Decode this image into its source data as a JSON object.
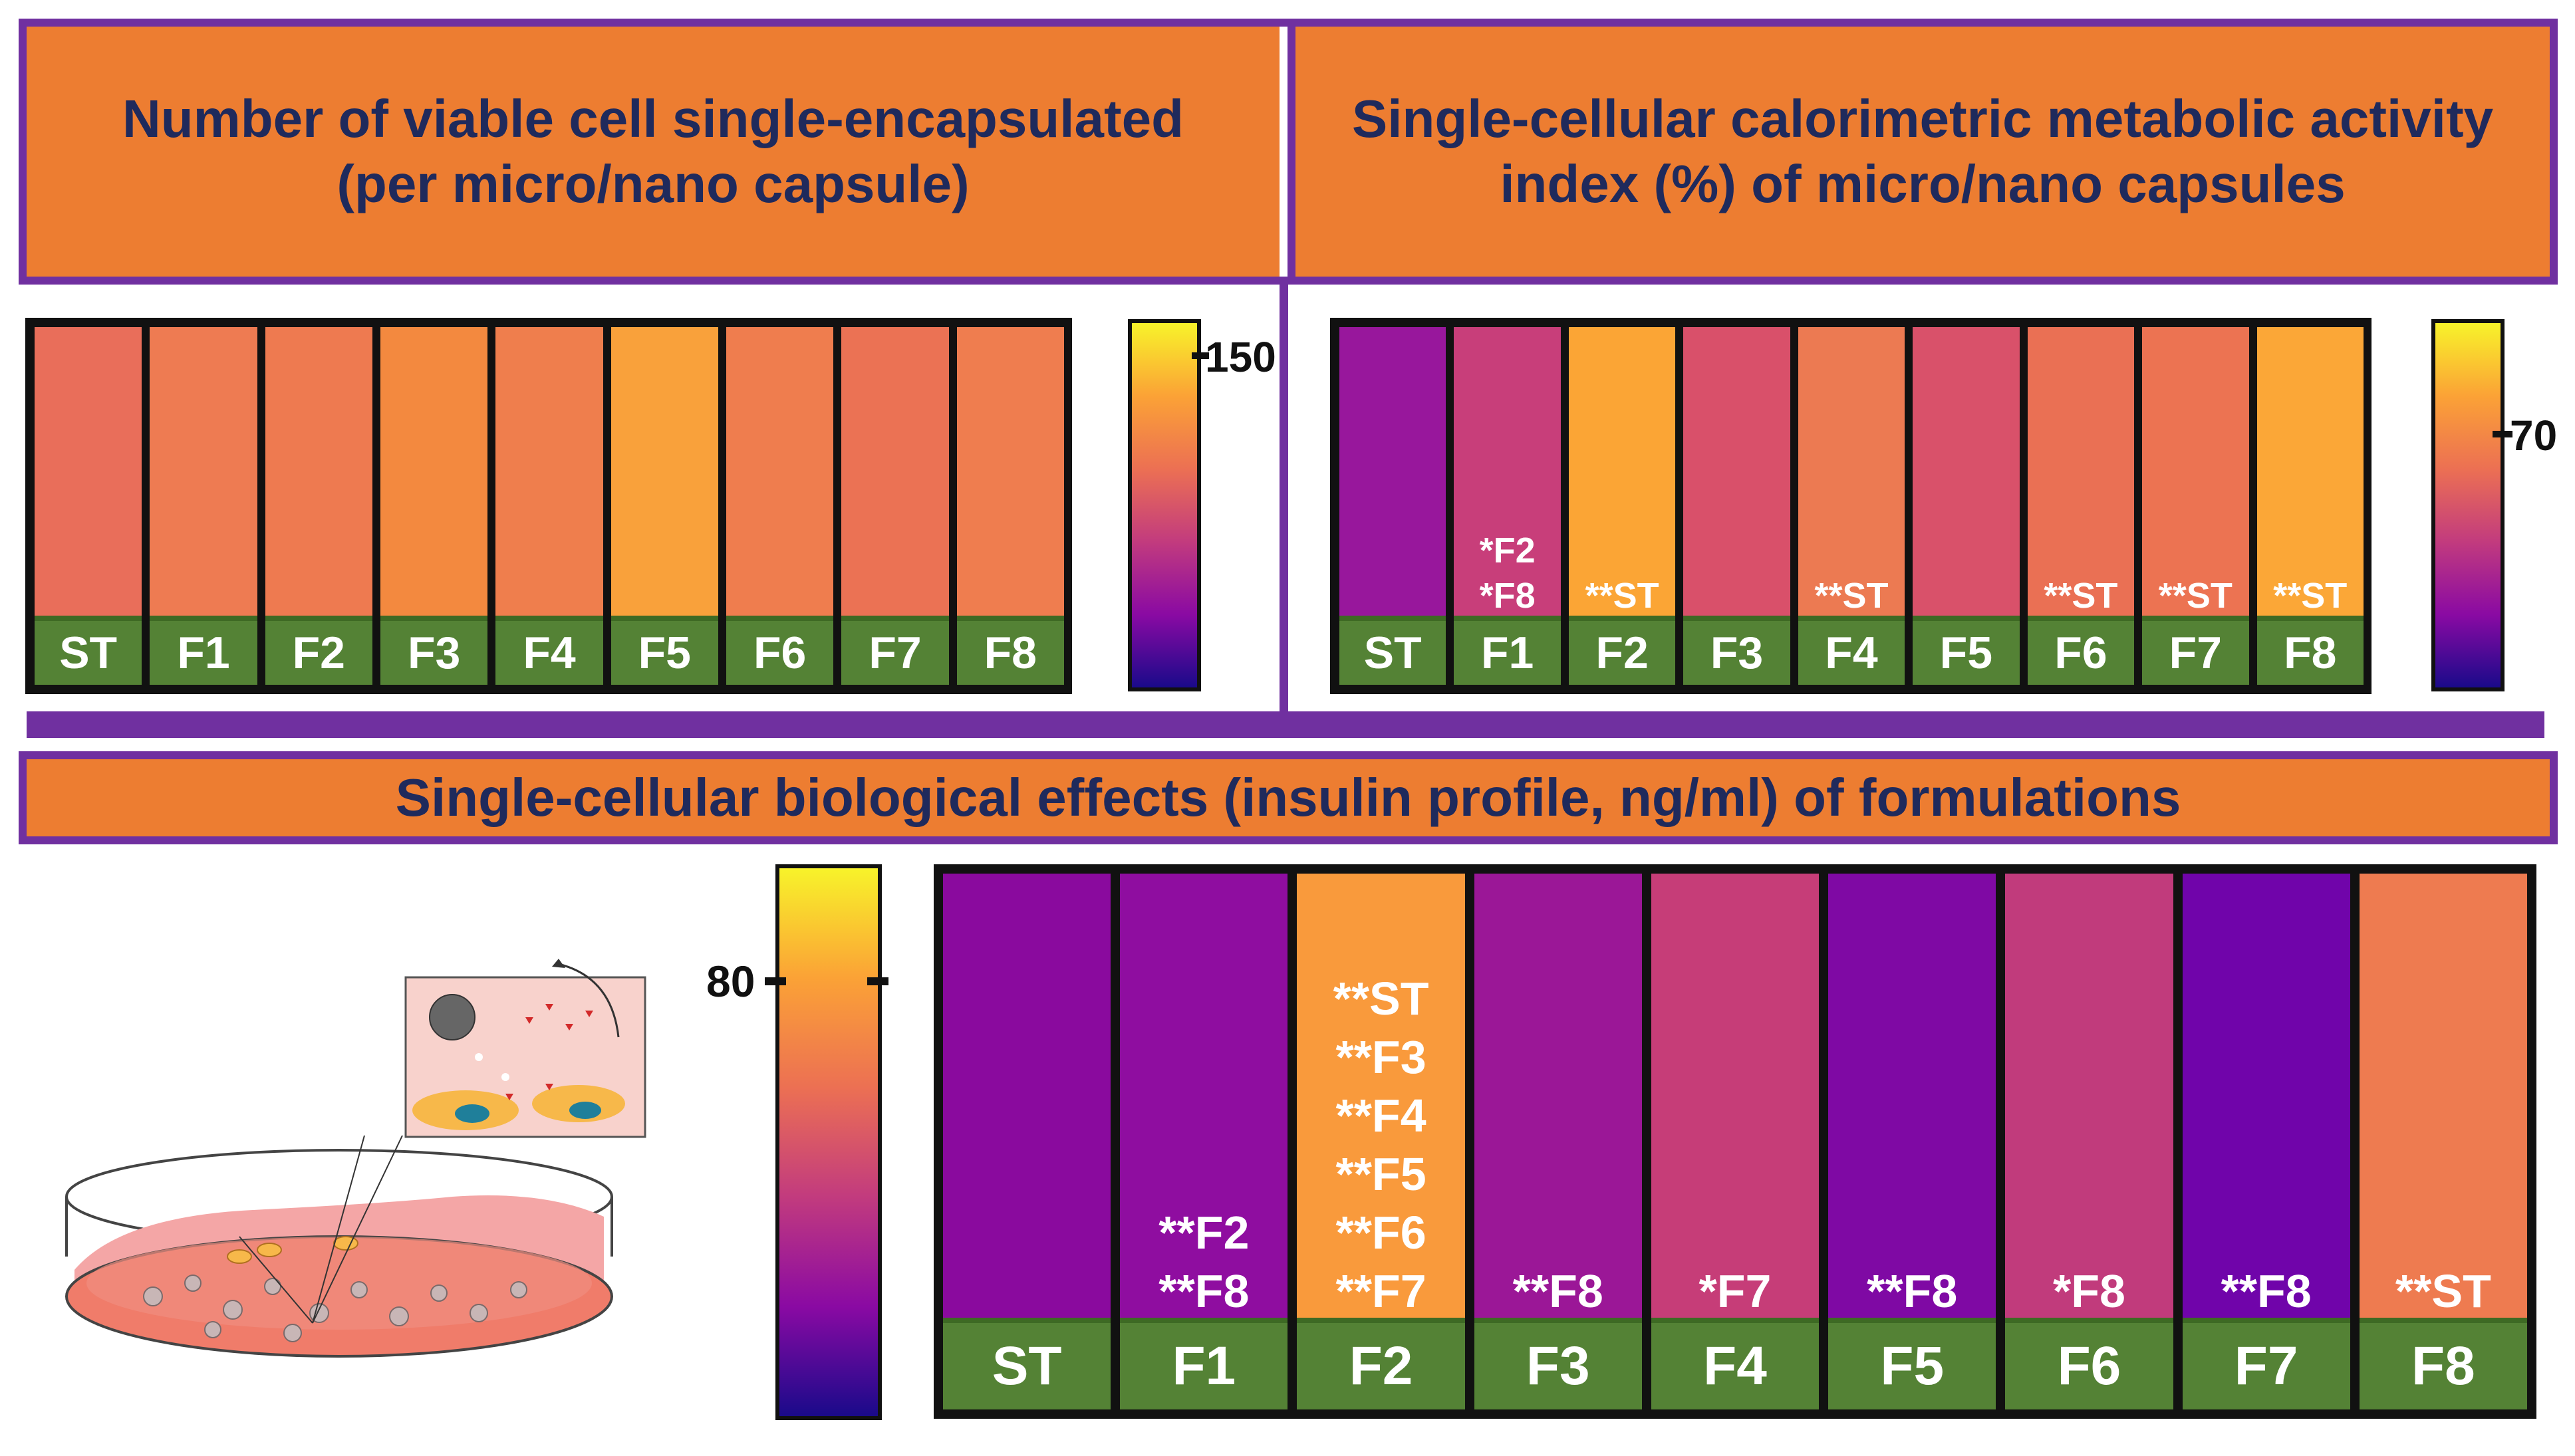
{
  "titles": {
    "panel_a": [
      "Number of viable cell single-encapsulated",
      "(per micro/nano capsule)"
    ],
    "panel_b": [
      "Single-cellular calorimetric metabolic activity",
      "index (%) of micro/nano capsules"
    ],
    "panel_c": [
      "Single-cellular biological effects (insulin profile, ng/ml) of formulations"
    ]
  },
  "colors": {
    "orange_title": "#ed7d31",
    "frame_purple": "#7030a0",
    "title_text": "#1f2a5c",
    "label_green": "#548235"
  },
  "colorbars": {
    "a": {
      "tick_label": "150"
    },
    "b": {
      "tick_label": "70"
    },
    "c": {
      "tick_label": "80"
    }
  },
  "chart_data": [
    {
      "type": "heatmap",
      "title": "Number of viable cell single-encapsulated (per micro/nano capsule)",
      "categories": [
        "ST",
        "F1",
        "F2",
        "F3",
        "F4",
        "F5",
        "F6",
        "F7",
        "F8"
      ],
      "colors": [
        "#e96e5a",
        "#ee7b52",
        "#ee7a50",
        "#f3893f",
        "#ef7e4d",
        "#f9a13b",
        "#ef7d4e",
        "#eb7254",
        "#ef7d4f"
      ],
      "significance": [
        [],
        [],
        [],
        [],
        [],
        [],
        [],
        [],
        []
      ],
      "colorbar_tick": 150
    },
    {
      "type": "heatmap",
      "title": "Single-cellular calorimetric metabolic activity index (%) of micro/nano capsules",
      "categories": [
        "ST",
        "F1",
        "F2",
        "F3",
        "F4",
        "F5",
        "F6",
        "F7",
        "F8"
      ],
      "colors": [
        "#98179c",
        "#c83e7a",
        "#fba535",
        "#d9506a",
        "#ec7a52",
        "#d9516a",
        "#ea7054",
        "#ec7352",
        "#fba737"
      ],
      "significance": [
        [],
        [
          "*F2",
          "*F8"
        ],
        [
          "**ST"
        ],
        [],
        [
          "**ST"
        ],
        [],
        [
          "**ST"
        ],
        [
          "**ST"
        ],
        [
          "**ST"
        ]
      ],
      "colorbar_tick": 70
    },
    {
      "type": "heatmap",
      "title": "Single-cellular biological effects (insulin profile, ng/ml) of formulations",
      "categories": [
        "ST",
        "F1",
        "F2",
        "F3",
        "F4",
        "F5",
        "F6",
        "F7",
        "F8"
      ],
      "colors": [
        "#8a0a9e",
        "#8f0da0",
        "#f99a3c",
        "#9b1797",
        "#c63d78",
        "#7f09a4",
        "#c13b7c",
        "#7004aa",
        "#ee7b50"
      ],
      "significance": [
        [],
        [
          "**F2",
          "**F8"
        ],
        [
          "**ST",
          "**F3",
          "**F4",
          "**F5",
          "**F6",
          "**F7"
        ],
        [
          "**F8"
        ],
        [
          "*F7"
        ],
        [
          "**F8"
        ],
        [
          "*F8"
        ],
        [
          "**F8"
        ],
        [
          "**ST"
        ]
      ],
      "colorbar_tick": 80
    }
  ]
}
